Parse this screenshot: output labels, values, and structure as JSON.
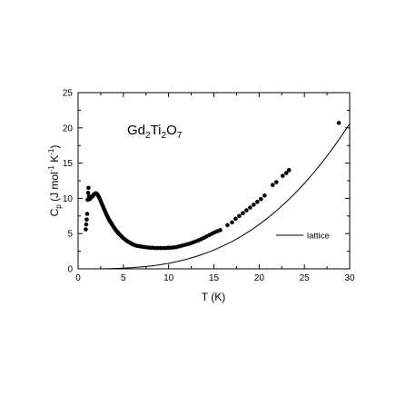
{
  "chart_data": {
    "type": "scatter",
    "annotation": {
      "base": "Gd",
      "sub1": "2",
      "mid": "Ti",
      "sub2": "2",
      "end": "O",
      "sub3": "7"
    },
    "xlabel": "T (K)",
    "ylabel": {
      "c": "C",
      "p": "p",
      "open": " (J mol",
      "exp1": "-1",
      "k": " K",
      "exp2": "-1",
      "close": ")"
    },
    "xlim": [
      0,
      30
    ],
    "ylim": [
      0,
      25
    ],
    "xticks": [
      0,
      5,
      10,
      15,
      20,
      25,
      30
    ],
    "yticks": [
      0,
      5,
      10,
      15,
      20,
      25
    ],
    "grid": false,
    "legend": {
      "position": "right",
      "entries": [
        "lattice"
      ]
    },
    "series": [
      {
        "kind": "scatter",
        "marker": "filled-circle",
        "x": [
          0.85,
          0.9,
          0.95,
          1.0,
          1.05,
          1.1,
          1.15,
          1.2,
          1.3,
          1.4,
          1.5,
          1.6,
          1.7,
          1.8,
          1.9,
          2.0,
          2.1,
          2.2,
          2.3,
          2.4,
          2.5,
          2.6,
          2.7,
          2.8,
          2.9,
          3.0,
          3.1,
          3.2,
          3.3,
          3.4,
          3.5,
          3.6,
          3.7,
          3.8,
          3.9,
          4.0,
          4.1,
          4.2,
          4.3,
          4.4,
          4.5,
          4.6,
          4.8,
          5.0,
          5.2,
          5.4,
          5.6,
          5.8,
          6.0,
          6.2,
          6.4,
          6.6,
          6.8,
          7.0,
          7.3,
          7.6,
          7.9,
          8.2,
          8.5,
          8.8,
          9.1,
          9.4,
          9.7,
          10.0,
          10.3,
          10.6,
          10.9,
          11.2,
          11.5,
          11.8,
          12.1,
          12.4,
          12.7,
          13.0,
          13.3,
          13.6,
          13.9,
          14.2,
          14.5,
          14.8,
          15.1,
          15.4,
          15.7,
          16.5,
          17.0,
          17.4,
          17.8,
          18.2,
          18.6,
          19.0,
          19.4,
          19.8,
          20.2,
          20.6,
          21.5,
          21.9,
          22.6,
          23.0,
          23.3,
          28.8
        ],
        "y": [
          5.6,
          6.3,
          7.0,
          7.8,
          9.8,
          10.8,
          11.5,
          10.3,
          9.9,
          10.1,
          10.2,
          10.3,
          10.5,
          10.6,
          10.7,
          10.7,
          10.6,
          10.4,
          10.2,
          9.9,
          9.6,
          9.3,
          9.0,
          8.7,
          8.4,
          8.1,
          7.8,
          7.5,
          7.3,
          7.0,
          6.8,
          6.6,
          6.4,
          6.2,
          6.0,
          5.8,
          5.6,
          5.45,
          5.3,
          5.15,
          5.0,
          4.85,
          4.6,
          4.35,
          4.15,
          3.95,
          3.8,
          3.65,
          3.5,
          3.4,
          3.3,
          3.25,
          3.2,
          3.15,
          3.1,
          3.05,
          3.0,
          3.0,
          2.95,
          2.95,
          2.95,
          2.95,
          2.95,
          3.0,
          3.0,
          3.05,
          3.1,
          3.2,
          3.3,
          3.4,
          3.5,
          3.6,
          3.75,
          3.9,
          4.05,
          4.2,
          4.4,
          4.6,
          4.8,
          5.0,
          5.2,
          5.35,
          5.5,
          6.2,
          6.6,
          7.1,
          7.5,
          7.9,
          8.3,
          8.7,
          9.1,
          9.5,
          9.9,
          10.4,
          11.9,
          12.3,
          13.2,
          13.6,
          14.0,
          20.7
        ]
      },
      {
        "kind": "line",
        "name": "lattice",
        "x": [
          0,
          1,
          2,
          3,
          4,
          5,
          6,
          7,
          8,
          9,
          10,
          11,
          12,
          13,
          14,
          15,
          16,
          17,
          18,
          19,
          20,
          21,
          22,
          23,
          24,
          25,
          26,
          27,
          28,
          29,
          30
        ],
        "y": [
          0,
          0.0008,
          0.006,
          0.022,
          0.05,
          0.1,
          0.17,
          0.27,
          0.4,
          0.57,
          0.79,
          1.05,
          1.37,
          1.74,
          2.17,
          2.67,
          3.24,
          3.88,
          4.6,
          5.4,
          6.29,
          7.27,
          8.34,
          9.5,
          10.76,
          12.13,
          13.6,
          15.18,
          16.87,
          18.68,
          20.6
        ]
      }
    ]
  }
}
